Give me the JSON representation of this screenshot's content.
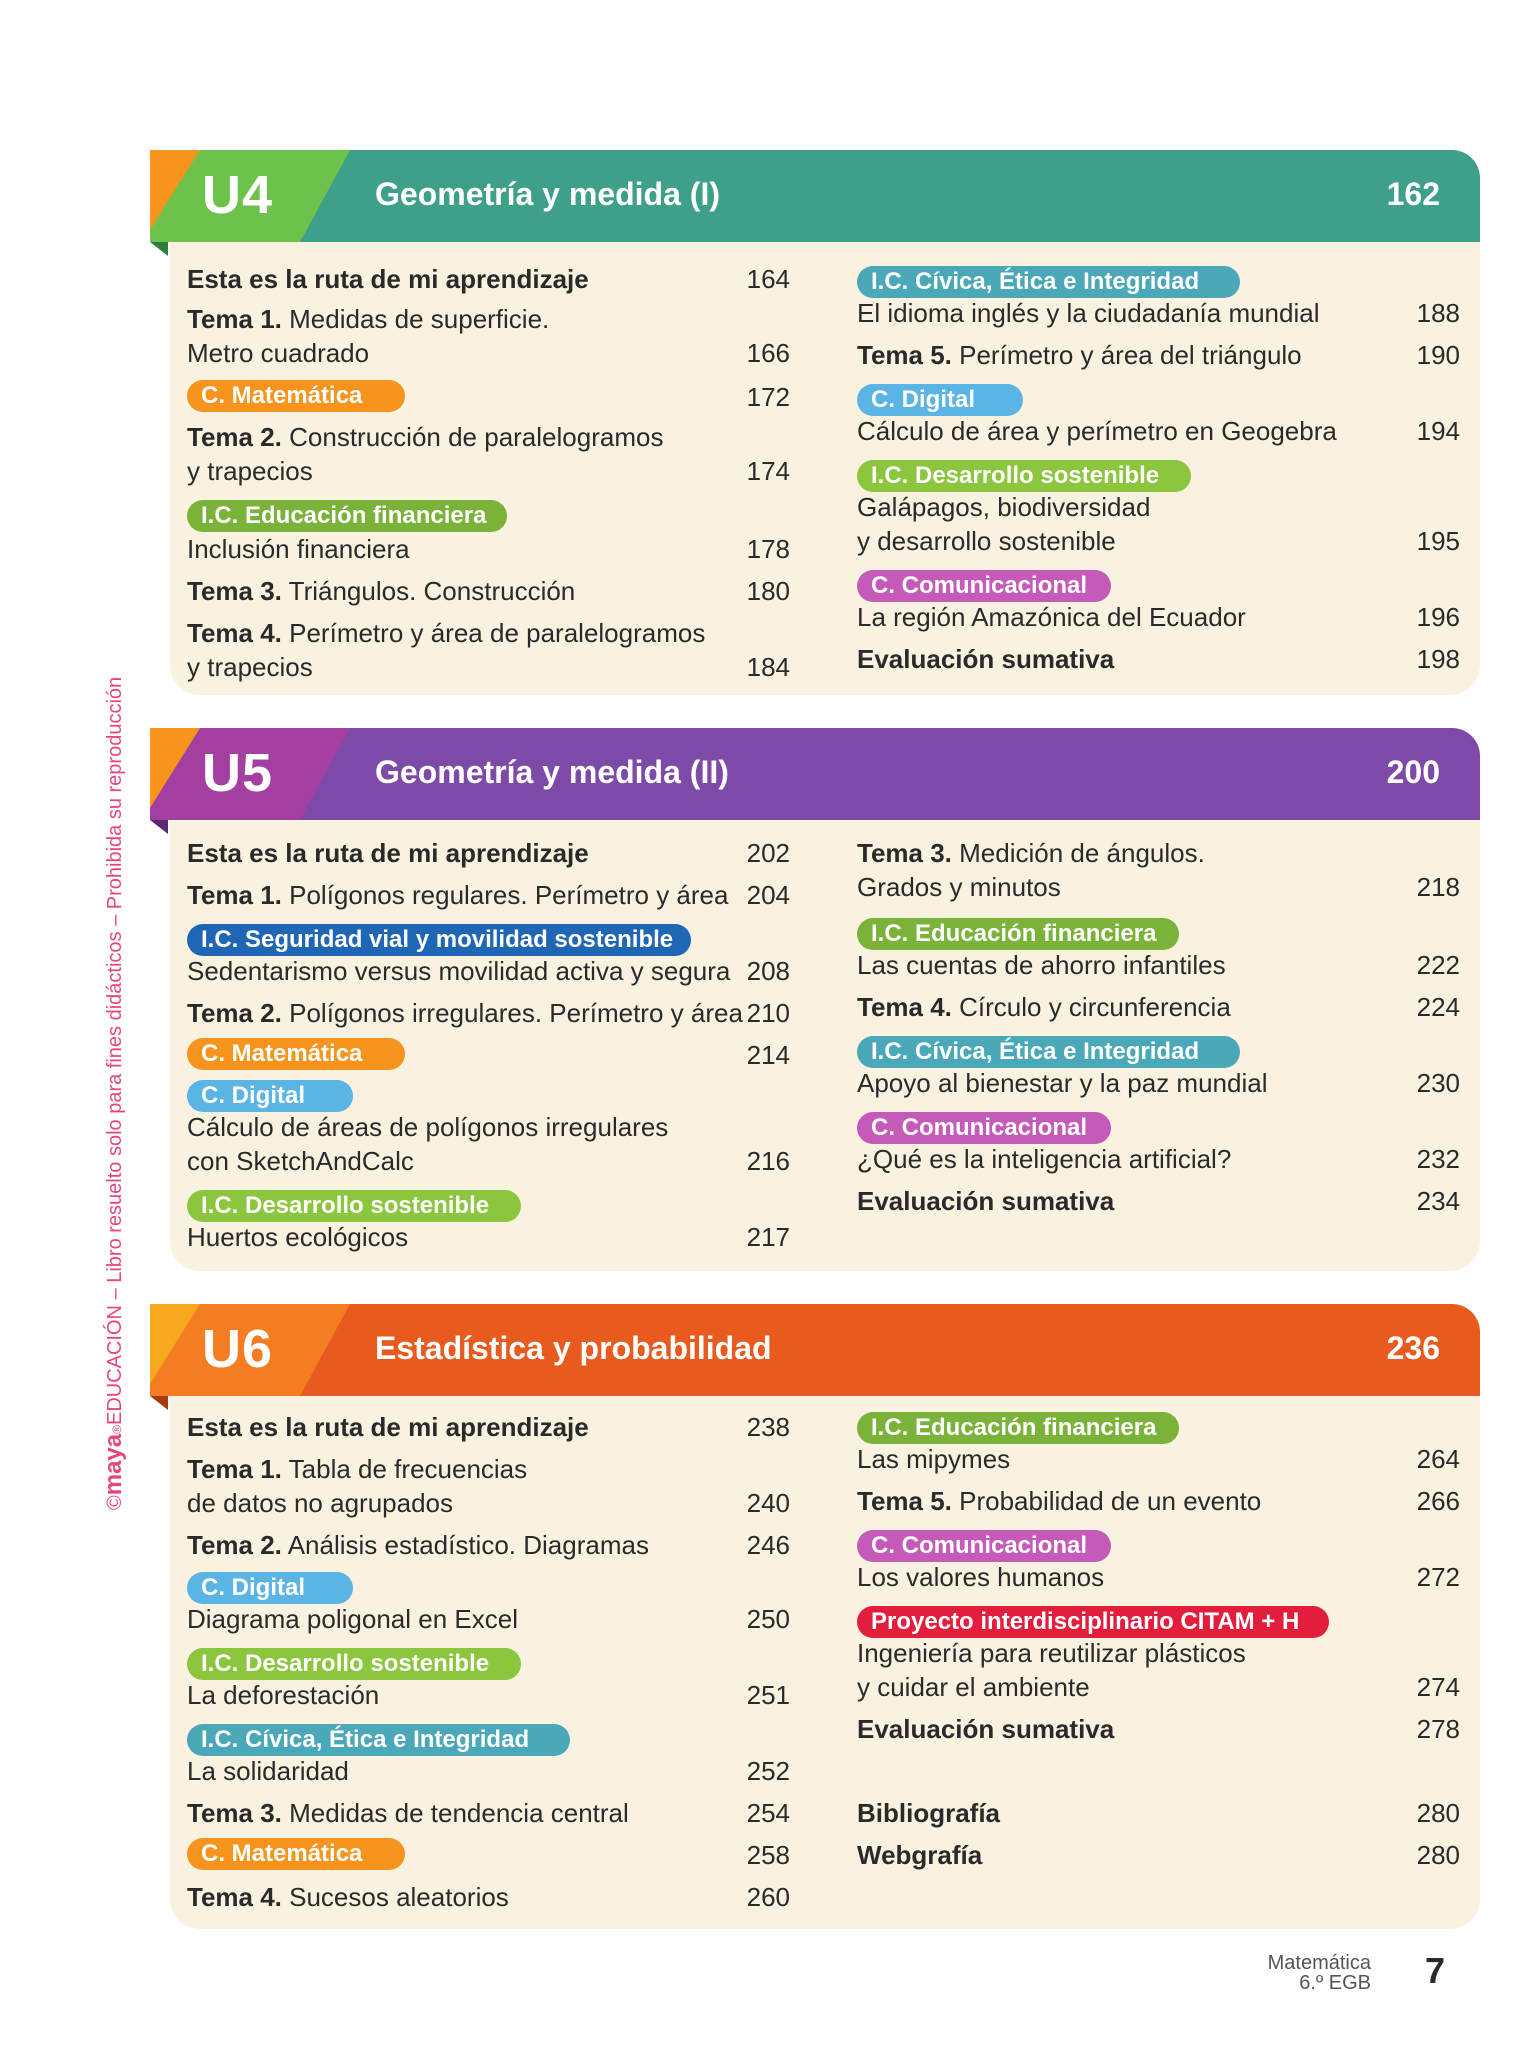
{
  "colors": {
    "teal": "#3fa08a",
    "purple": "#7e4aa8",
    "orange": "#e85a1e",
    "matematica": "#f7941d",
    "financiera": "#7ab23a",
    "civica": "#4aa8b8",
    "digital": "#5ab4e4",
    "sostenible": "#8cc63f",
    "comunicacional": "#c65ab8",
    "vial": "#1f67b5",
    "proyecto": "#e31e3c",
    "panel": "#faf2e1"
  },
  "units": [
    {
      "code": "U4",
      "title": "Geometría y medida (I)",
      "page": "162",
      "left": [
        {
          "bold": "Esta es la ruta de mi aprendizaje",
          "num": "164"
        },
        {
          "bold": "Tema 1.",
          "text": " Medidas de superficie.",
          "line2": "Metro cuadrado",
          "num": "166"
        },
        {
          "pill": "C. Matemática",
          "num": "172"
        },
        {
          "bold": "Tema 2.",
          "text": " Construcción de paralelogramos",
          "line2": "y trapecios",
          "num": "174"
        },
        {
          "pill": "I.C. Educación financiera",
          "line2": "Inclusión financiera",
          "num": "178"
        },
        {
          "bold": "Tema 3.",
          "text": " Triángulos. Construcción",
          "num": "180"
        },
        {
          "bold": "Tema 4.",
          "text": " Perímetro y área de paralelogramos",
          "line2": "y trapecios",
          "num": "184"
        }
      ],
      "right": [
        {
          "pill": "I.C. Cívica, Ética e Integridad",
          "line2": "El idioma inglés y la ciudadanía mundial",
          "num": "188"
        },
        {
          "bold": "Tema 5.",
          "text": " Perímetro y área del triángulo",
          "num": "190"
        },
        {
          "pill": "C. Digital",
          "line2": "Cálculo de área y perímetro en Geogebra",
          "num": "194"
        },
        {
          "pill": "I.C. Desarrollo sostenible",
          "line2": "Galápagos, biodiversidad",
          "line3": "y desarrollo sostenible",
          "num": "195"
        },
        {
          "pill": "C. Comunicacional",
          "line2": "La región Amazónica del Ecuador",
          "num": "196"
        },
        {
          "bold": "Evaluación sumativa",
          "num": "198"
        }
      ]
    },
    {
      "code": "U5",
      "title": "Geometría y medida (II)",
      "page": "200",
      "left": [
        {
          "bold": "Esta es la ruta de mi aprendizaje",
          "num": "202"
        },
        {
          "bold": "Tema 1.",
          "text": " Polígonos regulares. Perímetro y área",
          "num": "204"
        },
        {
          "pill": "I.C. Seguridad vial y movilidad sostenible",
          "line2": "Sedentarismo versus movilidad activa y segura",
          "num": "208"
        },
        {
          "bold": "Tema 2.",
          "text": " Polígonos irregulares. Perímetro y área",
          "num": "210"
        },
        {
          "pill": "C. Matemática",
          "num": "214"
        },
        {
          "pill": "C. Digital",
          "line2": "Cálculo de áreas de polígonos irregulares",
          "line3": "con SketchAndCalc",
          "num": "216"
        },
        {
          "pill": "I.C. Desarrollo sostenible",
          "line2": "Huertos ecológicos",
          "num": "217"
        }
      ],
      "right": [
        {
          "bold": "Tema 3.",
          "text": " Medición de ángulos.",
          "line2": "Grados y minutos",
          "num": "218"
        },
        {
          "pill": "I.C. Educación financiera",
          "line2": "Las cuentas de ahorro infantiles",
          "num": "222"
        },
        {
          "bold": "Tema 4.",
          "text": " Círculo y circunferencia",
          "num": "224"
        },
        {
          "pill": "I.C. Cívica, Ética e Integridad",
          "line2": "Apoyo al bienestar y la paz mundial",
          "num": "230"
        },
        {
          "pill": "C. Comunicacional",
          "line2": "¿Qué es la inteligencia artificial?",
          "num": "232"
        },
        {
          "bold": "Evaluación sumativa",
          "num": "234"
        }
      ]
    },
    {
      "code": "U6",
      "title": "Estadística y probabilidad",
      "page": "236",
      "left": [
        {
          "bold": "Esta es la ruta de mi aprendizaje",
          "num": "238"
        },
        {
          "bold": "Tema 1.",
          "text": " Tabla de frecuencias",
          "line2": "de datos no agrupados",
          "num": "240"
        },
        {
          "bold": "Tema 2.",
          "text": " Análisis estadístico. Diagramas",
          "num": "246"
        },
        {
          "pill": "C. Digital",
          "line2": "Diagrama poligonal en Excel",
          "num": "250"
        },
        {
          "pill": "I.C. Desarrollo sostenible",
          "line2": "La deforestación",
          "num": "251"
        },
        {
          "pill": "I.C. Cívica, Ética e Integridad",
          "line2": "La solidaridad",
          "num": "252"
        },
        {
          "bold": "Tema 3.",
          "text": " Medidas de tendencia central",
          "num": "254"
        },
        {
          "pill": "C. Matemática",
          "num": "258"
        },
        {
          "bold": "Tema 4.",
          "text": " Sucesos aleatorios",
          "num": "260"
        }
      ],
      "right": [
        {
          "pill": "I.C. Educación financiera",
          "line2": "Las mipymes",
          "num": "264"
        },
        {
          "bold": "Tema 5.",
          "text": " Probabilidad de un evento",
          "num": "266"
        },
        {
          "pill": "C. Comunicacional",
          "line2": "Los valores humanos",
          "num": "272"
        },
        {
          "pill": "Proyecto interdisciplinario CITAM + H",
          "line2": "Ingeniería para reutilizar plásticos",
          "line3": "y cuidar el ambiente",
          "num": "274"
        },
        {
          "bold": "Evaluación sumativa",
          "num": "278"
        },
        {
          "bold": "Bibliografía",
          "num": "280"
        },
        {
          "bold": "Webgrafía",
          "num": "280"
        }
      ]
    }
  ],
  "sidebar": {
    "copyright": "©",
    "brand": "maya",
    "reg": "®",
    "text": "EDUCACIÓN – Libro resuelto solo para fines didácticos – Prohibida su reproducción"
  },
  "footer": {
    "subject": "Matemática",
    "grade": "6.º EGB",
    "page": "7"
  }
}
